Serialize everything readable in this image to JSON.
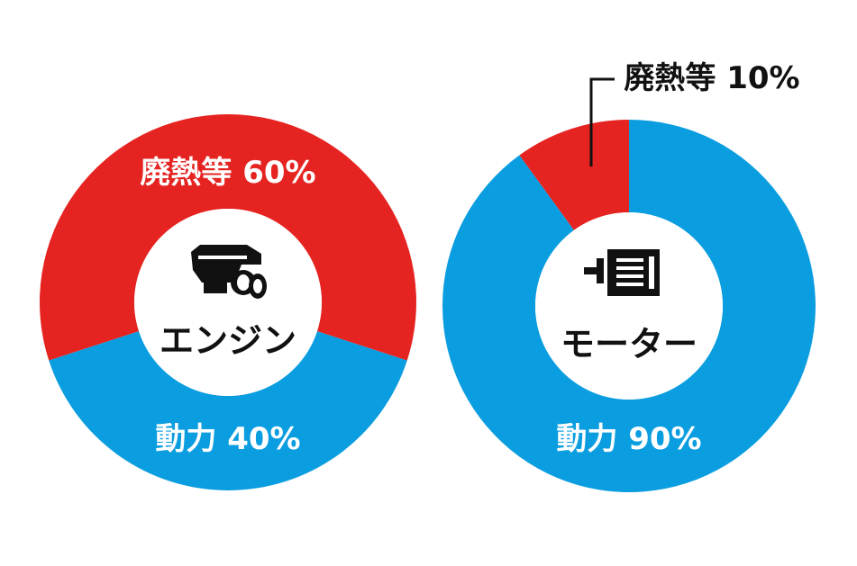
{
  "chart_data": [
    {
      "type": "pie",
      "label": "エンジン",
      "categories": [
        "廃熱等",
        "動力"
      ],
      "values": [
        60,
        40
      ],
      "value_labels": [
        "60%",
        "40%"
      ],
      "colors": [
        "#e52421",
        "#0a9de0"
      ]
    },
    {
      "type": "pie",
      "label": "モーター",
      "categories": [
        "廃熱等",
        "動力"
      ],
      "values": [
        10,
        90
      ],
      "value_labels": [
        "10%",
        "90%"
      ],
      "colors": [
        "#e52421",
        "#0a9de0"
      ]
    }
  ]
}
